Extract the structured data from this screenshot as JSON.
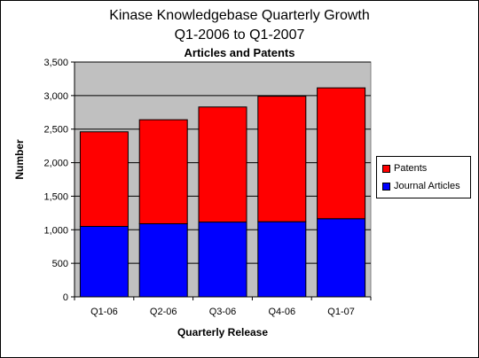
{
  "titles": {
    "line1": "Kinase Knowledgebase Quarterly Growth",
    "line2": "Q1-2006 to Q1-2007",
    "line3": "Articles and Patents"
  },
  "chart_data": {
    "type": "bar",
    "stacked": true,
    "categories": [
      "Q1-06",
      "Q2-06",
      "Q3-06",
      "Q4-06",
      "Q1-07"
    ],
    "series": [
      {
        "name": "Journal Articles",
        "values": [
          1050,
          1090,
          1115,
          1120,
          1165
        ],
        "color": "#0000ff"
      },
      {
        "name": "Patents",
        "values": [
          1410,
          1550,
          1715,
          1870,
          1950
        ],
        "color": "#ff0000"
      }
    ],
    "xlabel": "Quarterly Release",
    "ylabel": "Number",
    "ylim": [
      0,
      3500
    ],
    "yticks": [
      0,
      500,
      1000,
      1500,
      2000,
      2500,
      3000,
      3500
    ],
    "ytick_labels": [
      "0",
      "500",
      "1,000",
      "1,500",
      "2,000",
      "2,500",
      "3,000",
      "3,500"
    ],
    "grid": true,
    "plot_background": "#c0c0c0",
    "legend_position": "right",
    "legend": [
      "Patents",
      "Journal Articles"
    ]
  }
}
